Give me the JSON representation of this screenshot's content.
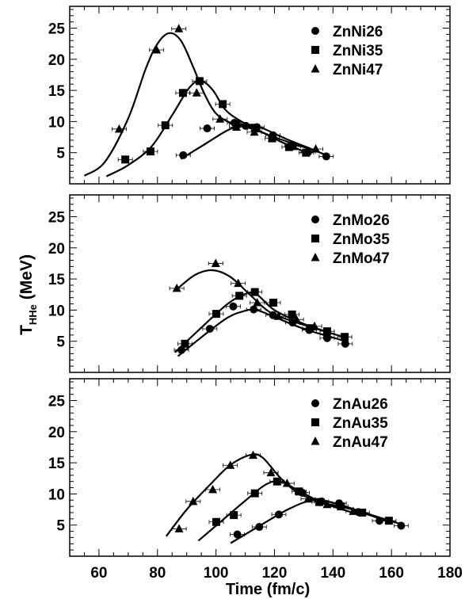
{
  "chart_data": {
    "type": "scatter",
    "xlabel": "Time (fm/c)",
    "ylabel_main": "T",
    "ylabel_sub": "HHe",
    "ylabel_unit": "(MeV)",
    "xlim": [
      50,
      180
    ],
    "ylim": [
      0,
      28.5
    ],
    "x_ticks": [
      60,
      80,
      100,
      120,
      140,
      160,
      180
    ],
    "y_ticks": [
      5,
      10,
      15,
      20,
      25
    ],
    "grid": false,
    "legend_position": "top-right",
    "panels": [
      {
        "series": [
          {
            "name": "ZnNi26",
            "marker": "circle",
            "points": [
              [
                88.8,
                4.6
              ],
              [
                97.0,
                8.9
              ],
              [
                106.3,
                9.8
              ],
              [
                110.2,
                9.3
              ],
              [
                114.0,
                9.1
              ],
              [
                119.5,
                7.8
              ],
              [
                126.0,
                6.2
              ],
              [
                131.5,
                5.1
              ],
              [
                137.7,
                4.4
              ]
            ],
            "curve": [
              [
                88.0,
                4.0
              ],
              [
                96.0,
                6.3
              ],
              [
                104.0,
                8.6
              ],
              [
                110.0,
                9.5
              ],
              [
                116.0,
                8.9
              ],
              [
                124.0,
                7.2
              ],
              [
                132.0,
                5.7
              ],
              [
                137.7,
                4.6
              ]
            ]
          },
          {
            "name": "ZnNi35",
            "marker": "square",
            "points": [
              [
                69.0,
                3.9
              ],
              [
                77.6,
                5.2
              ],
              [
                82.7,
                9.4
              ],
              [
                88.7,
                14.6
              ],
              [
                94.4,
                16.5
              ],
              [
                102.3,
                12.8
              ],
              [
                107.0,
                9.6
              ],
              [
                113.3,
                9.0
              ],
              [
                119.2,
                7.3
              ],
              [
                125.0,
                5.9
              ],
              [
                130.8,
                5.0
              ]
            ],
            "curve": [
              [
                62.5,
                1.2
              ],
              [
                70.0,
                3.0
              ],
              [
                78.0,
                6.0
              ],
              [
                85.0,
                11.0
              ],
              [
                91.0,
                15.5
              ],
              [
                95.0,
                16.5
              ],
              [
                99.0,
                15.0
              ],
              [
                103.0,
                12.0
              ],
              [
                108.0,
                10.2
              ],
              [
                115.0,
                8.5
              ],
              [
                122.0,
                6.8
              ],
              [
                130.0,
                5.2
              ]
            ]
          },
          {
            "name": "ZnNi47",
            "marker": "triangle",
            "points": [
              [
                66.9,
                8.8
              ],
              [
                79.7,
                21.5
              ],
              [
                87.3,
                24.9
              ],
              [
                93.4,
                14.6
              ],
              [
                101.4,
                10.4
              ],
              [
                107.0,
                9.1
              ],
              [
                113.1,
                8.3
              ],
              [
                126.5,
                6.0
              ],
              [
                134.1,
                5.6
              ]
            ],
            "curve": [
              [
                55.0,
                1.3
              ],
              [
                62.0,
                3.5
              ],
              [
                70.0,
                10.5
              ],
              [
                76.0,
                18.5
              ],
              [
                80.0,
                22.5
              ],
              [
                84.0,
                24.2
              ],
              [
                88.0,
                23.0
              ],
              [
                92.0,
                19.0
              ],
              [
                96.0,
                14.5
              ],
              [
                100.0,
                11.3
              ],
              [
                105.0,
                9.8
              ],
              [
                112.0,
                8.9
              ],
              [
                120.0,
                7.5
              ],
              [
                128.0,
                6.2
              ],
              [
                135.0,
                5.2
              ]
            ]
          }
        ]
      },
      {
        "series": [
          {
            "name": "ZnMo26",
            "marker": "circle",
            "points": [
              [
                88.2,
                3.6
              ],
              [
                97.9,
                7.0
              ],
              [
                105.9,
                10.6
              ],
              [
                112.9,
                10.1
              ],
              [
                119.5,
                9.2
              ],
              [
                126.2,
                8.0
              ],
              [
                131.9,
                6.8
              ],
              [
                138.0,
                5.5
              ],
              [
                144.2,
                4.6
              ]
            ],
            "curve": [
              [
                87.0,
                2.6
              ],
              [
                96.0,
                6.0
              ],
              [
                104.0,
                8.8
              ],
              [
                110.0,
                9.9
              ],
              [
                114.0,
                10.0
              ],
              [
                120.0,
                8.9
              ],
              [
                130.0,
                7.0
              ],
              [
                140.0,
                5.6
              ],
              [
                144.2,
                5.0
              ]
            ]
          },
          {
            "name": "ZnMo35",
            "marker": "square",
            "points": [
              [
                89.4,
                4.6
              ],
              [
                100.1,
                9.4
              ],
              [
                108.0,
                12.3
              ],
              [
                113.3,
                12.9
              ],
              [
                119.6,
                11.2
              ],
              [
                126.0,
                9.3
              ],
              [
                132.1,
                7.1
              ],
              [
                138.0,
                6.6
              ],
              [
                144.0,
                5.7
              ]
            ],
            "curve": [
              [
                86.0,
                3.2
              ],
              [
                95.0,
                7.2
              ],
              [
                104.0,
                11.0
              ],
              [
                110.0,
                12.6
              ],
              [
                114.0,
                12.5
              ],
              [
                120.0,
                10.0
              ],
              [
                130.0,
                7.8
              ],
              [
                140.0,
                6.2
              ],
              [
                144.0,
                5.7
              ]
            ]
          },
          {
            "name": "ZnMo47",
            "marker": "triangle",
            "points": [
              [
                86.6,
                13.5
              ],
              [
                99.9,
                17.5
              ],
              [
                107.6,
                14.3
              ],
              [
                114.1,
                11.2
              ],
              [
                121.3,
                9.0
              ],
              [
                127.5,
                8.5
              ],
              [
                133.7,
                7.4
              ],
              [
                138.0,
                6.2
              ]
            ],
            "curve": [
              [
                87.0,
                13.5
              ],
              [
                93.0,
                15.7
              ],
              [
                99.0,
                16.4
              ],
              [
                105.0,
                15.3
              ],
              [
                112.0,
                12.3
              ],
              [
                118.0,
                9.8
              ],
              [
                125.0,
                8.4
              ],
              [
                133.0,
                7.2
              ],
              [
                138.0,
                6.5
              ]
            ]
          }
        ]
      },
      {
        "series": [
          {
            "name": "ZnAu26",
            "marker": "circle",
            "points": [
              [
                107.3,
                3.5
              ],
              [
                114.8,
                4.7
              ],
              [
                121.5,
                6.7
              ],
              [
                129.5,
                10.2
              ],
              [
                136.1,
                8.8
              ],
              [
                142.1,
                8.5
              ],
              [
                148.7,
                7.1
              ],
              [
                155.9,
                5.7
              ],
              [
                163.3,
                4.9
              ]
            ],
            "curve": [
              [
                105.0,
                2.1
              ],
              [
                115.0,
                4.9
              ],
              [
                125.0,
                7.6
              ],
              [
                133.0,
                9.0
              ],
              [
                140.0,
                8.6
              ],
              [
                150.0,
                7.1
              ],
              [
                158.0,
                5.9
              ],
              [
                163.0,
                5.2
              ]
            ]
          },
          {
            "name": "ZnAu35",
            "marker": "square",
            "points": [
              [
                100.1,
                5.5
              ],
              [
                106.1,
                6.6
              ],
              [
                113.3,
                10.1
              ],
              [
                120.9,
                12.0
              ],
              [
                128.4,
                10.4
              ],
              [
                135.3,
                8.7
              ],
              [
                142.7,
                8.0
              ],
              [
                150.0,
                7.0
              ],
              [
                159.1,
                5.7
              ]
            ],
            "curve": [
              [
                94.0,
                2.5
              ],
              [
                102.0,
                5.7
              ],
              [
                110.0,
                8.9
              ],
              [
                117.0,
                11.5
              ],
              [
                122.0,
                12.0
              ],
              [
                128.0,
                10.6
              ],
              [
                136.0,
                8.7
              ],
              [
                145.0,
                7.7
              ],
              [
                155.0,
                6.2
              ],
              [
                159.0,
                5.5
              ]
            ]
          },
          {
            "name": "ZnAu47",
            "marker": "triangle",
            "points": [
              [
                87.4,
                4.4
              ],
              [
                92.2,
                8.8
              ],
              [
                98.9,
                10.7
              ],
              [
                104.9,
                14.6
              ],
              [
                112.7,
                16.2
              ],
              [
                118.8,
                13.4
              ],
              [
                124.3,
                11.7
              ],
              [
                131.5,
                9.2
              ],
              [
                138.0,
                8.3
              ],
              [
                146.9,
                7.2
              ]
            ],
            "curve": [
              [
                83.0,
                3.2
              ],
              [
                90.0,
                7.5
              ],
              [
                98.0,
                11.5
              ],
              [
                105.0,
                14.7
              ],
              [
                112.0,
                16.3
              ],
              [
                116.0,
                15.8
              ],
              [
                122.0,
                12.6
              ],
              [
                128.0,
                10.2
              ],
              [
                136.0,
                8.6
              ],
              [
                146.0,
                7.1
              ]
            ]
          }
        ]
      }
    ]
  }
}
